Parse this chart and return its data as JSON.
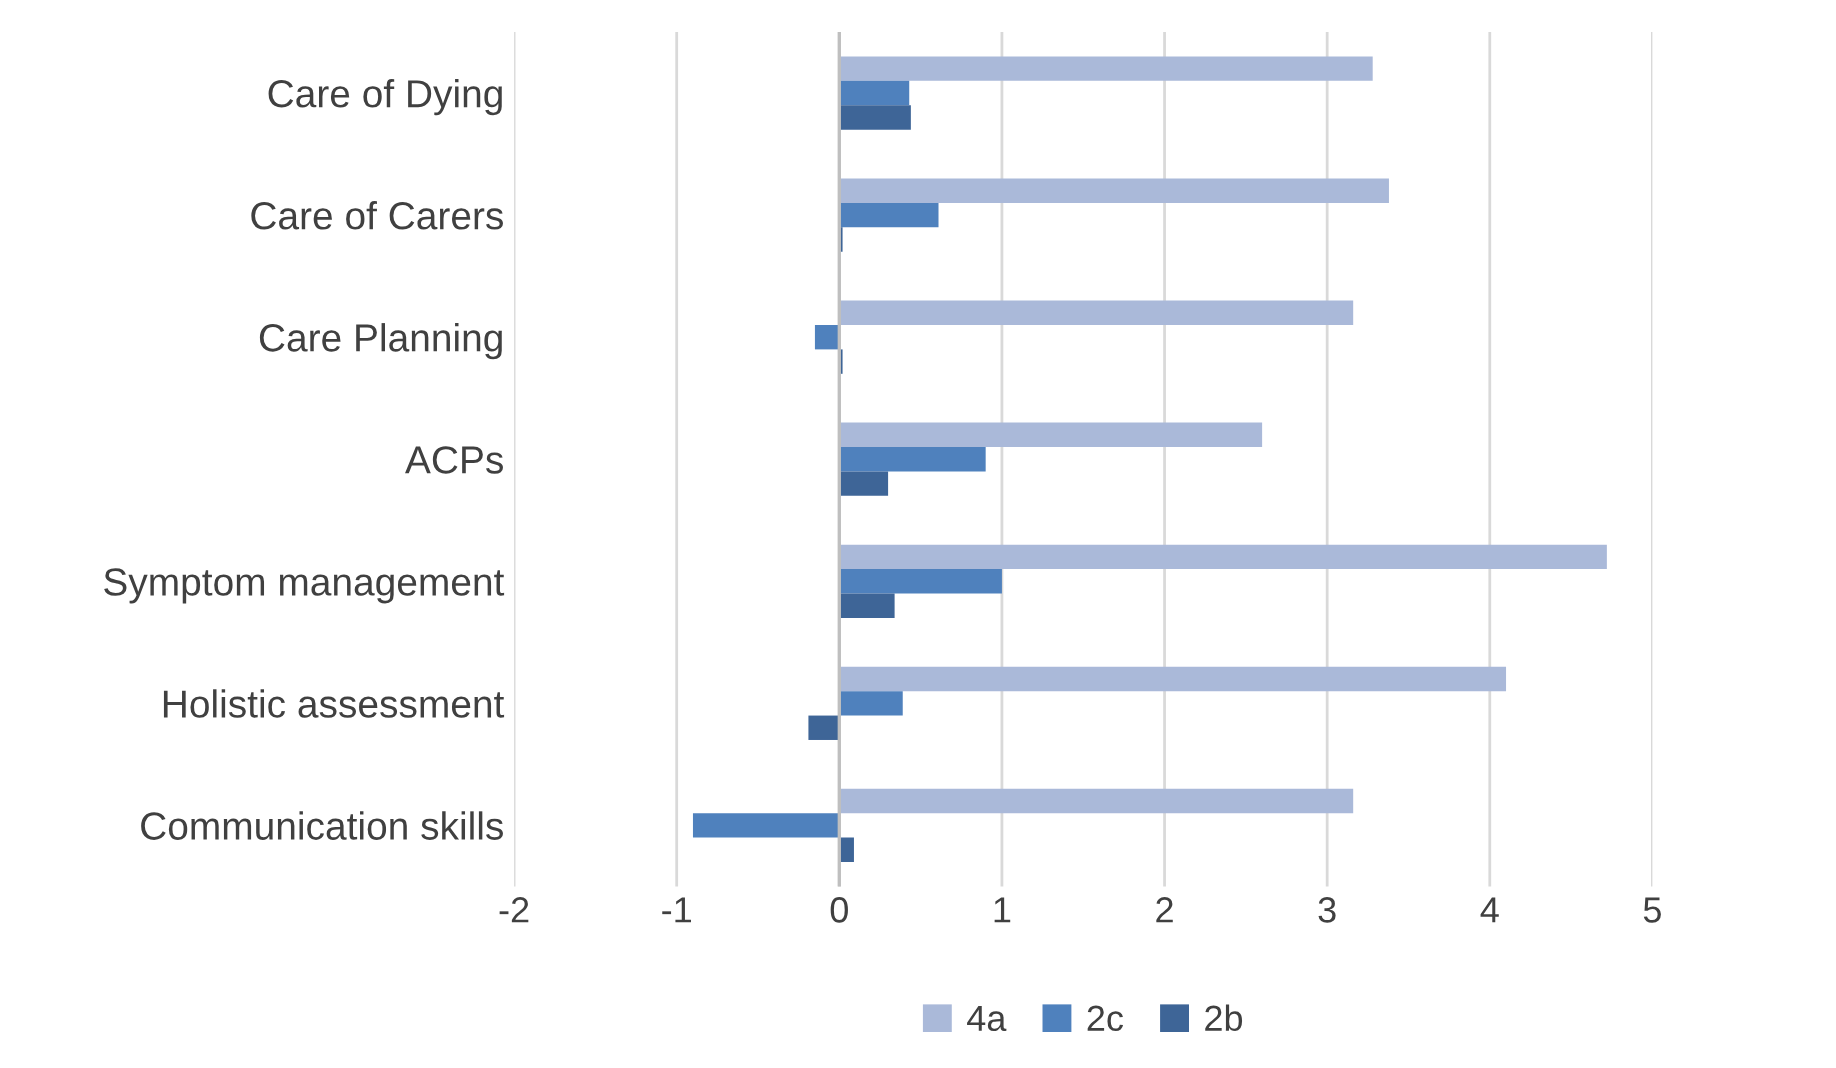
{
  "chart_data": {
    "type": "bar",
    "orientation": "horizontal",
    "categories": [
      "Care of Dying",
      "Care of Carers",
      "Care Planning",
      "ACPs",
      "Symptom management",
      "Holistic assessment",
      "Communication skills"
    ],
    "series": [
      {
        "name": "4a",
        "color": "#aab9d9",
        "values": [
          3.28,
          3.38,
          3.16,
          2.6,
          4.72,
          4.1,
          3.16
        ]
      },
      {
        "name": "2c",
        "color": "#4f81bd",
        "values": [
          0.43,
          0.61,
          -0.15,
          0.9,
          1.0,
          0.39,
          -0.9
        ]
      },
      {
        "name": "2b",
        "color": "#3e6597",
        "values": [
          0.44,
          0.02,
          0.02,
          0.3,
          0.34,
          -0.19,
          0.09
        ]
      }
    ],
    "xlim": [
      -2,
      5
    ],
    "xticks": [
      -2,
      -1,
      0,
      1,
      2,
      3,
      4,
      5
    ],
    "grid": "x",
    "legend": "bottom"
  }
}
